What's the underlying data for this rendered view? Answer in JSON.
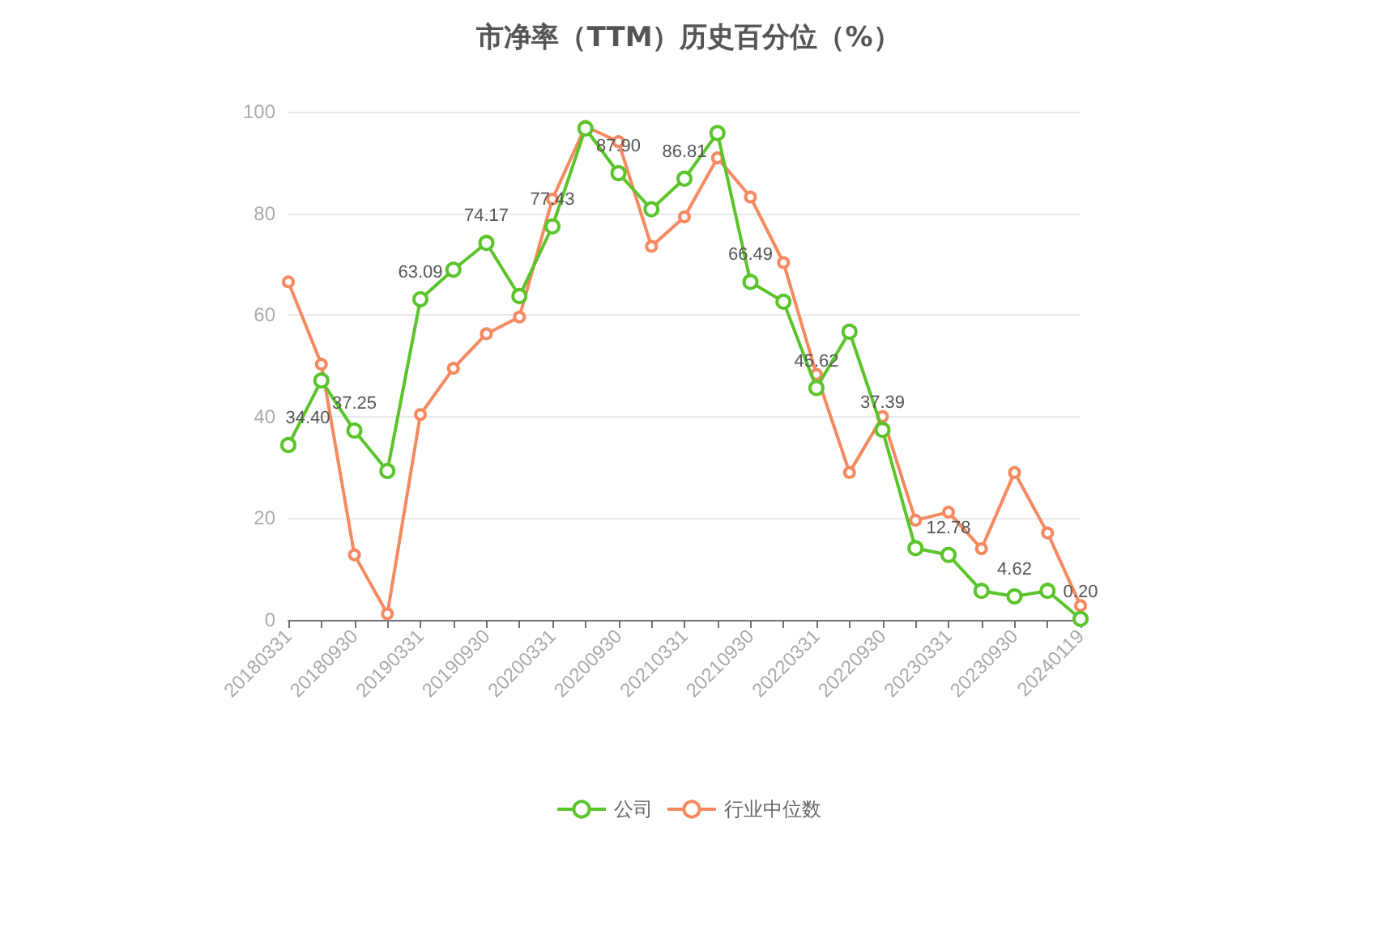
{
  "chart_data": {
    "type": "line",
    "title": "市净率（TTM）历史百分位（%）",
    "categories": [
      "20180331",
      null,
      "20180930",
      null,
      "20190331",
      null,
      "20190930",
      null,
      "20200331",
      null,
      "20200930",
      null,
      "20210331",
      null,
      "20210930",
      null,
      "20220331",
      null,
      "20220930",
      null,
      "20230331",
      null,
      "20230930",
      null,
      "20240119"
    ],
    "series": [
      {
        "name": "公司",
        "color": "#5ac42a",
        "values": [
          34.4,
          47.1,
          37.25,
          29.3,
          63.09,
          68.9,
          74.17,
          63.7,
          77.43,
          96.7,
          87.9,
          80.8,
          86.81,
          95.8,
          66.49,
          62.6,
          45.62,
          56.7,
          37.39,
          14.1,
          12.78,
          5.7,
          4.62,
          5.7,
          0.2
        ],
        "value_labels": [
          "34.40",
          null,
          "37.25",
          null,
          "63.09",
          null,
          "74.17",
          null,
          "77.43",
          null,
          "87.90",
          null,
          "86.81",
          null,
          "66.49",
          null,
          "45.62",
          null,
          "37.39",
          null,
          "12.78",
          null,
          "4.62",
          null,
          "0.20"
        ]
      },
      {
        "name": "行业中位数",
        "color": "#f5895f",
        "values": [
          66.5,
          50.3,
          12.8,
          1.2,
          40.4,
          49.5,
          56.3,
          59.6,
          82.8,
          97.1,
          94.1,
          73.5,
          79.3,
          90.9,
          83.2,
          70.3,
          48.3,
          29.0,
          40.0,
          19.6,
          21.2,
          14.0,
          29.0,
          17.1,
          2.8
        ]
      }
    ],
    "ylim": [
      0,
      100
    ],
    "yticks": [
      0,
      20,
      40,
      60,
      80,
      100
    ],
    "grid": "y",
    "legend": "bottom",
    "marker": "circle",
    "line_style": "solid"
  }
}
